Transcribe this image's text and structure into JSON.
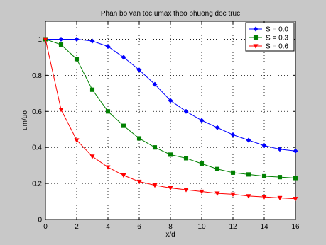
{
  "chart_data": {
    "type": "line",
    "title": "Phan bo van toc umax theo phuong doc truc",
    "xlabel": "x/d",
    "ylabel": "um/uo",
    "xlim": [
      0,
      16
    ],
    "ylim": [
      0,
      1.1
    ],
    "xticks": [
      0,
      2,
      4,
      6,
      8,
      10,
      12,
      14,
      16
    ],
    "yticks": [
      0,
      0.2,
      0.4,
      0.6,
      0.8,
      1
    ],
    "ytick_labels": [
      "0",
      "0.2",
      "0.4",
      "0.6",
      "0.8",
      "1"
    ],
    "grid": true,
    "legend_position": "top-right",
    "x": [
      0,
      1,
      2,
      3,
      4,
      5,
      6,
      7,
      8,
      9,
      10,
      11,
      12,
      13,
      14,
      15,
      16
    ],
    "series": [
      {
        "name": "S = 0.0",
        "color": "#0000ff",
        "marker": "diamond",
        "values": [
          1.0,
          1.0,
          1.0,
          0.99,
          0.96,
          0.9,
          0.83,
          0.75,
          0.66,
          0.6,
          0.55,
          0.51,
          0.47,
          0.44,
          0.41,
          0.39,
          0.38
        ]
      },
      {
        "name": "S = 0.3",
        "color": "#008000",
        "marker": "square",
        "values": [
          1.0,
          0.97,
          0.89,
          0.72,
          0.6,
          0.52,
          0.45,
          0.4,
          0.36,
          0.34,
          0.31,
          0.28,
          0.26,
          0.25,
          0.24,
          0.235,
          0.23
        ]
      },
      {
        "name": "S = 0.6",
        "color": "#ff0000",
        "marker": "triangle-down",
        "values": [
          1.0,
          0.61,
          0.44,
          0.35,
          0.29,
          0.245,
          0.21,
          0.19,
          0.175,
          0.165,
          0.155,
          0.145,
          0.14,
          0.13,
          0.125,
          0.12,
          0.115
        ]
      }
    ]
  }
}
